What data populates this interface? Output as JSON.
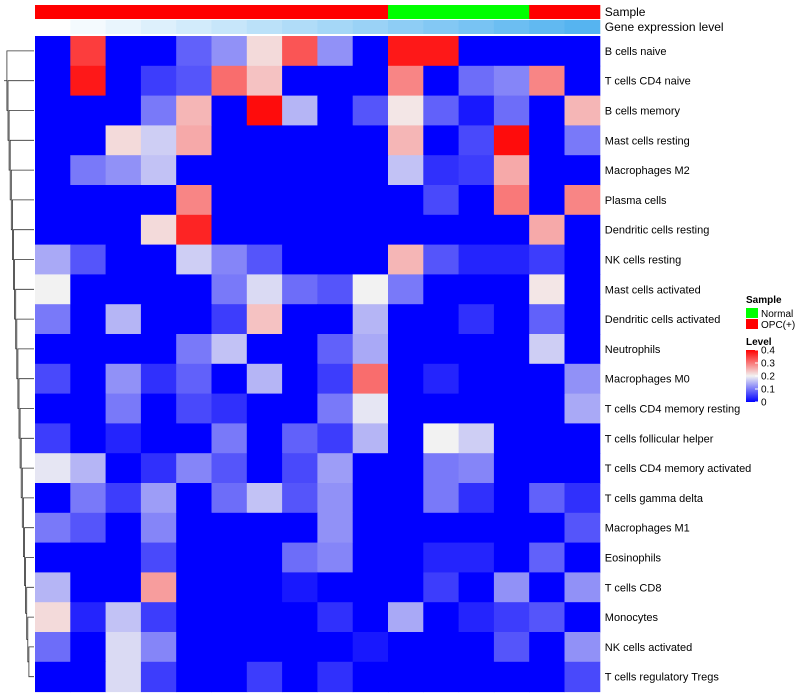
{
  "chart_data": {
    "type": "heatmap",
    "title": "",
    "legend_position": "right",
    "annotation_tracks": [
      {
        "name": "Sample",
        "groups": [
          "OPC(+)",
          "OPC(+)",
          "OPC(+)",
          "OPC(+)",
          "OPC(+)",
          "OPC(+)",
          "OPC(+)",
          "OPC(+)",
          "OPC(+)",
          "OPC(+)",
          "Normal",
          "Normal",
          "Normal",
          "Normal",
          "OPC(+)",
          "OPC(+)"
        ]
      },
      {
        "name": "Gene expression level",
        "values": [
          0.0,
          0.067,
          0.133,
          0.2,
          0.267,
          0.333,
          0.4,
          0.467,
          0.533,
          0.6,
          0.667,
          0.733,
          0.8,
          0.867,
          0.933,
          1.0
        ],
        "low_color": "#ffffff",
        "high_color": "#56b4f0"
      }
    ],
    "sample_legend": {
      "title": "Sample",
      "items": [
        {
          "label": "Normal",
          "color": "#00ff00"
        },
        {
          "label": "OPC(+)",
          "color": "#ff0000"
        }
      ]
    },
    "color_scale": {
      "title": "Level",
      "min": 0,
      "max": 0.4,
      "ticks": [
        0.4,
        0.3,
        0.2,
        0.1,
        0
      ],
      "tick_labels": [
        "0.4",
        "0.3",
        "0.2",
        "0.1",
        "0"
      ],
      "low_color": "#0000ff",
      "mid_color": "#f2f2f2",
      "high_color": "#ff0000",
      "midpoint": 0.2
    },
    "rows": [
      "B cells naive",
      "T cells CD4 naive",
      "B cells memory",
      "Mast cells resting",
      "Macrophages M2",
      "Plasma cells",
      "Dendritic cells resting",
      "NK cells resting",
      "Mast cells activated",
      "Dendritic cells activated",
      "Neutrophils",
      "Macrophages M0",
      "T cells CD4 memory resting",
      "T cells follicular helper",
      "T cells CD4 memory activated",
      "T cells gamma delta",
      "Macrophages M1",
      "Eosinophils",
      "T cells CD8",
      "Monocytes",
      "NK cells activated",
      "T cells regulatory  Tregs"
    ],
    "values": [
      [
        0,
        0.35,
        0,
        0,
        0.08,
        0.12,
        0.22,
        0.33,
        0.12,
        0,
        0.38,
        0.38,
        0,
        0,
        0,
        0
      ],
      [
        0,
        0.38,
        0,
        0.05,
        0.07,
        0.31,
        0.24,
        0,
        0,
        0,
        0.29,
        0,
        0.09,
        0.11,
        0.29,
        0
      ],
      [
        0,
        0,
        0,
        0.1,
        0.25,
        0,
        0.39,
        0.15,
        0,
        0.07,
        0.21,
        0.08,
        0.02,
        0.09,
        0,
        0.25
      ],
      [
        0,
        0,
        0.22,
        0.17,
        0.26,
        0,
        0,
        0,
        0,
        0,
        0.25,
        0,
        0.06,
        0.39,
        0,
        0.1
      ],
      [
        0,
        0.1,
        0.12,
        0.16,
        0,
        0,
        0,
        0,
        0,
        0,
        0.16,
        0.04,
        0.05,
        0.26,
        0,
        0
      ],
      [
        0,
        0,
        0,
        0,
        0.29,
        0,
        0,
        0,
        0,
        0,
        0,
        0.06,
        0,
        0.3,
        0,
        0.29
      ],
      [
        0,
        0,
        0,
        0.22,
        0.37,
        0,
        0,
        0,
        0,
        0,
        0,
        0,
        0,
        0,
        0.26,
        0
      ],
      [
        0.14,
        0.07,
        0,
        0,
        0.17,
        0.11,
        0.07,
        0,
        0,
        0,
        0.25,
        0.07,
        0.03,
        0.03,
        0.05,
        0
      ],
      [
        0.2,
        0,
        0,
        0,
        0,
        0.1,
        0.18,
        0.09,
        0.07,
        0.2,
        0.1,
        0,
        0,
        0,
        0.21,
        0
      ],
      [
        0.1,
        0,
        0.15,
        0,
        0,
        0.05,
        0.24,
        0,
        0,
        0.15,
        0,
        0,
        0.04,
        0,
        0.08,
        0
      ],
      [
        0,
        0,
        0,
        0,
        0.1,
        0.16,
        0,
        0,
        0.08,
        0.14,
        0,
        0,
        0,
        0,
        0.17,
        0
      ],
      [
        0.06,
        0,
        0.12,
        0.04,
        0.08,
        0,
        0.15,
        0,
        0.05,
        0.31,
        0,
        0.03,
        0,
        0,
        0,
        0.12
      ],
      [
        0,
        0,
        0.1,
        0,
        0.06,
        0.04,
        0,
        0,
        0.1,
        0.19,
        0,
        0,
        0,
        0,
        0,
        0.14
      ],
      [
        0.05,
        0,
        0.03,
        0,
        0,
        0.1,
        0,
        0.08,
        0.05,
        0.15,
        0,
        0.2,
        0.17,
        0,
        0,
        0
      ],
      [
        0.19,
        0.15,
        0,
        0.04,
        0.11,
        0.07,
        0,
        0.06,
        0.13,
        0,
        0,
        0.1,
        0.11,
        0,
        0,
        0
      ],
      [
        0,
        0.1,
        0.05,
        0.13,
        0,
        0.09,
        0.16,
        0.07,
        0.12,
        0,
        0,
        0.1,
        0.04,
        0,
        0.08,
        0.04
      ],
      [
        0.1,
        0.07,
        0,
        0.11,
        0,
        0,
        0,
        0,
        0.12,
        0,
        0,
        0,
        0,
        0,
        0,
        0.07
      ],
      [
        0,
        0,
        0,
        0.06,
        0,
        0,
        0,
        0.09,
        0.11,
        0,
        0,
        0.03,
        0.03,
        0,
        0.08,
        0
      ],
      [
        0.15,
        0,
        0,
        0.27,
        0,
        0,
        0,
        0.02,
        0,
        0,
        0,
        0.05,
        0,
        0.12,
        0,
        0.12
      ],
      [
        0.22,
        0.03,
        0.16,
        0.05,
        0,
        0,
        0,
        0,
        0.04,
        0,
        0.14,
        0,
        0.03,
        0.05,
        0.07,
        0
      ],
      [
        0.09,
        0,
        0.18,
        0.11,
        0,
        0,
        0,
        0,
        0,
        0.02,
        0,
        0,
        0,
        0.07,
        0,
        0.12
      ],
      [
        0,
        0,
        0.18,
        0.05,
        0,
        0,
        0.05,
        0,
        0.04,
        0,
        0,
        0,
        0,
        0,
        0,
        0.06
      ]
    ]
  }
}
